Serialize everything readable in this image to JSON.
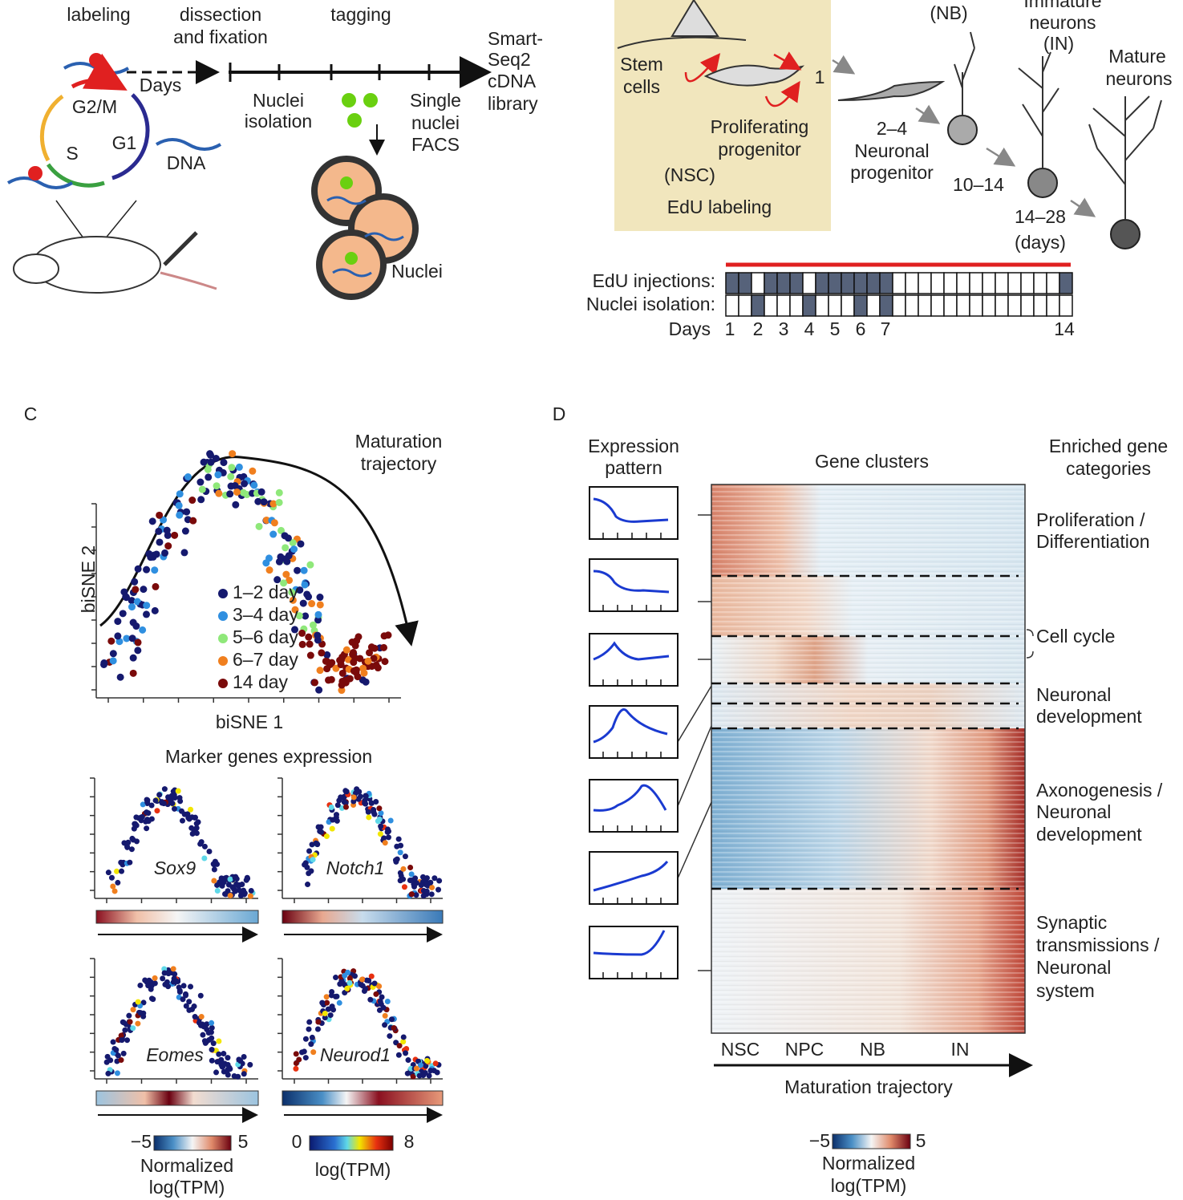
{
  "panel_a": {
    "texts": [
      "labeling",
      "dissection",
      "and fixation",
      "tagging",
      "Smart-",
      "Seq2",
      "cDNA",
      "library",
      "Days",
      "G2/M",
      "G1",
      "S",
      "DNA",
      "Nuclei",
      "isolation",
      "Single",
      "nuclei",
      "FACS",
      "Nuclei"
    ]
  },
  "panel_b": {
    "texts": [
      "Immature",
      "(NB)",
      "neurons",
      "(IN)",
      "Mature",
      "neurons",
      "Stem",
      "cells",
      "1",
      "Proliferating",
      "progenitor",
      "(NSC)",
      "EdU labeling",
      "2–4",
      "Neuronal",
      "progenitor",
      "10–14",
      "14–28",
      "(days)",
      "EdU injections:",
      "Nuclei isolation:",
      "Days"
    ],
    "day_labels": [
      "1",
      "2",
      "3",
      "4",
      "5",
      "6",
      "7",
      "14"
    ]
  },
  "panel_c": {
    "letter": "C",
    "texts": [
      "Maturation",
      "trajectory",
      "biSNE 2",
      "biSNE 1",
      "Marker genes expression",
      "Sox9",
      "Notch1",
      "Eomes",
      "Neurod1",
      "−5",
      "5",
      "Normalized",
      "log(TPM)",
      "0",
      "8",
      "log(TPM)"
    ],
    "legend": [
      {
        "name": "1–2 day",
        "color": "#15196e"
      },
      {
        "name": "3–4 day",
        "color": "#2f8fe0"
      },
      {
        "name": "5–6 day",
        "color": "#8fe87a"
      },
      {
        "name": "6–7 day",
        "color": "#f07f1e"
      },
      {
        "name": "14 day",
        "color": "#7a0a0a"
      }
    ]
  },
  "panel_d": {
    "letter": "D",
    "texts": [
      "Expression",
      "pattern",
      "Gene clusters",
      "Enriched gene",
      "categories",
      "Proliferation /",
      "Differentiation",
      "Cell cycle",
      "Neuronal",
      "development",
      "Axonogenesis /",
      "Neuronal",
      "development",
      "Synaptic",
      "transmissions /",
      "Neuronal",
      "system",
      "NSC",
      "NPC",
      "NB",
      "IN",
      "Maturation trajectory",
      "−5",
      "5",
      "Normalized",
      "log(TPM)"
    ]
  }
}
